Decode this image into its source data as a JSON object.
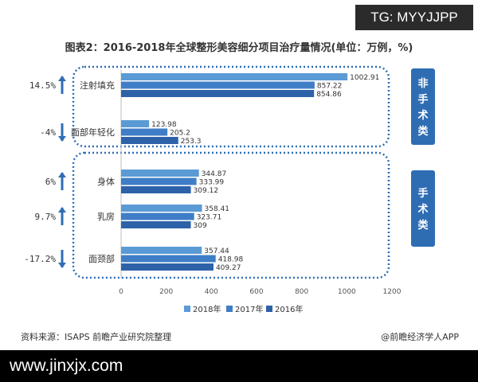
{
  "badge": "TG: MYYJJPP",
  "footer": {
    "source": "资料来源：ISAPS 前瞻产业研究院整理",
    "brand": "@前瞻经济学人APP"
  },
  "watermark_text": "www.jinxjx.com",
  "colors": {
    "series": [
      "#5b9bd5",
      "#3f7ec6",
      "#2e62a8"
    ],
    "group_box": "#2f6db3",
    "arrow": "#2f6db3"
  },
  "chart_data": {
    "type": "bar",
    "orientation": "horizontal",
    "title": "图表2：2016-2018年全球整形美容细分项目治疗量情况(单位：万例，%)",
    "categories": [
      "注射填充",
      "面部年轻化",
      "身体",
      "乳房",
      "面颈部"
    ],
    "series": [
      {
        "name": "2018年",
        "values": [
          1002.91,
          123.98,
          344.87,
          358.41,
          357.44
        ]
      },
      {
        "name": "2017年",
        "values": [
          857.22,
          205.2,
          333.99,
          323.71,
          418.98
        ]
      },
      {
        "name": "2016年",
        "values": [
          854.86,
          253.3,
          309.12,
          309,
          409.27
        ]
      }
    ],
    "value_labels": [
      [
        "1002.91",
        "123.98",
        "344.87",
        "358.41",
        "357.44"
      ],
      [
        "857.22",
        "205.2",
        "333.99",
        "323.71",
        "418.98"
      ],
      [
        "854.86",
        "253.3",
        "309.12",
        "309",
        "409.27"
      ]
    ],
    "changes": [
      {
        "label": "14.5%",
        "direction": "up"
      },
      {
        "label": "-4%",
        "direction": "down"
      },
      {
        "label": "6%",
        "direction": "up"
      },
      {
        "label": "9.7%",
        "direction": "up"
      },
      {
        "label": "-17.2%",
        "direction": "down"
      }
    ],
    "groups": [
      {
        "label": "非手术类",
        "categories": [
          "注射填充",
          "面部年轻化"
        ]
      },
      {
        "label": "手术类",
        "categories": [
          "身体",
          "乳房",
          "面颈部"
        ]
      }
    ],
    "xlim": [
      0,
      1200
    ],
    "xticks": [
      "0",
      "200",
      "400",
      "600",
      "800",
      "1000",
      "1200"
    ],
    "xlabel": "",
    "ylabel": "",
    "grid": false,
    "legend_position": "bottom"
  }
}
